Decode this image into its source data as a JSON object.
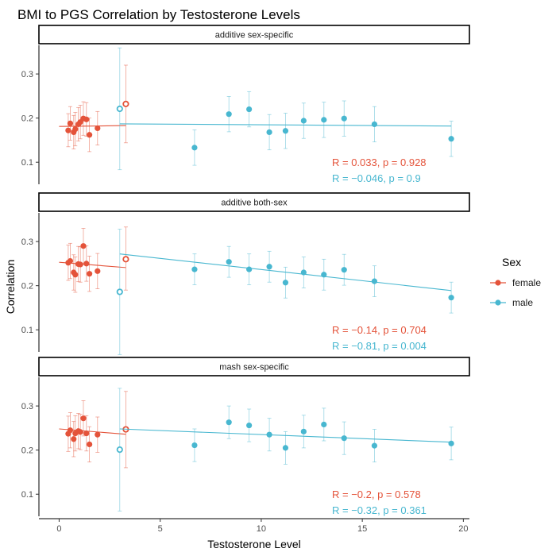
{
  "chart_data": {
    "type": "scatter",
    "title": "BMI to PGS Correlation by Testosterone Levels",
    "xlabel": "Testosterone Level",
    "ylabel": "Correlation",
    "xlim": [
      -1,
      20.3
    ],
    "ylim": [
      0.05,
      0.365
    ],
    "x_ticks": [
      0,
      5,
      10,
      15,
      20
    ],
    "y_ticks": [
      0.1,
      0.2,
      0.3
    ],
    "grid": false,
    "legend": {
      "title": "Sex",
      "position": "right",
      "entries": [
        {
          "label": "female",
          "color": "#E4533A"
        },
        {
          "label": "male",
          "color": "#48B7D0"
        }
      ]
    },
    "panels": [
      {
        "strip": "additive sex-specific",
        "female": {
          "points": [
            {
              "x": 0.45,
              "y": 0.172,
              "lo": 0.135,
              "hi": 0.21
            },
            {
              "x": 0.55,
              "y": 0.188,
              "lo": 0.15,
              "hi": 0.226
            },
            {
              "x": 0.72,
              "y": 0.168,
              "lo": 0.13,
              "hi": 0.206
            },
            {
              "x": 0.8,
              "y": 0.175,
              "lo": 0.137,
              "hi": 0.213
            },
            {
              "x": 0.95,
              "y": 0.186,
              "lo": 0.148,
              "hi": 0.224
            },
            {
              "x": 1.05,
              "y": 0.191,
              "lo": 0.153,
              "hi": 0.229
            },
            {
              "x": 1.2,
              "y": 0.199,
              "lo": 0.161,
              "hi": 0.237
            },
            {
              "x": 1.35,
              "y": 0.197,
              "lo": 0.159,
              "hi": 0.235
            },
            {
              "x": 1.5,
              "y": 0.162,
              "lo": 0.124,
              "hi": 0.2
            },
            {
              "x": 1.9,
              "y": 0.177,
              "lo": 0.139,
              "hi": 0.215
            },
            {
              "x": 3.3,
              "y": 0.232,
              "lo": 0.144,
              "hi": 0.32,
              "hollow": true
            }
          ],
          "fit": {
            "x": [
              0,
              3.3
            ],
            "y": [
              0.181,
              0.183
            ]
          },
          "stat": "R = 0.033, p = 0.928"
        },
        "male": {
          "points": [
            {
              "x": 3.0,
              "y": 0.221,
              "lo": 0.083,
              "hi": 0.359,
              "hollow": true
            },
            {
              "x": 6.7,
              "y": 0.133,
              "lo": 0.093,
              "hi": 0.173
            },
            {
              "x": 8.4,
              "y": 0.209,
              "lo": 0.169,
              "hi": 0.249
            },
            {
              "x": 9.4,
              "y": 0.22,
              "lo": 0.18,
              "hi": 0.26
            },
            {
              "x": 10.4,
              "y": 0.168,
              "lo": 0.128,
              "hi": 0.208
            },
            {
              "x": 11.2,
              "y": 0.171,
              "lo": 0.131,
              "hi": 0.211
            },
            {
              "x": 12.1,
              "y": 0.194,
              "lo": 0.154,
              "hi": 0.234
            },
            {
              "x": 13.1,
              "y": 0.196,
              "lo": 0.156,
              "hi": 0.236
            },
            {
              "x": 14.1,
              "y": 0.199,
              "lo": 0.159,
              "hi": 0.239
            },
            {
              "x": 15.6,
              "y": 0.186,
              "lo": 0.146,
              "hi": 0.226
            },
            {
              "x": 19.4,
              "y": 0.153,
              "lo": 0.113,
              "hi": 0.193
            }
          ],
          "fit": {
            "x": [
              3.0,
              19.4
            ],
            "y": [
              0.187,
              0.182
            ]
          },
          "stat": "R = −0.046, p = 0.9"
        }
      },
      {
        "strip": "additive both-sex",
        "female": {
          "points": [
            {
              "x": 0.45,
              "y": 0.252,
              "lo": 0.212,
              "hi": 0.292
            },
            {
              "x": 0.55,
              "y": 0.256,
              "lo": 0.216,
              "hi": 0.296
            },
            {
              "x": 0.72,
              "y": 0.23,
              "lo": 0.19,
              "hi": 0.27
            },
            {
              "x": 0.8,
              "y": 0.225,
              "lo": 0.185,
              "hi": 0.265
            },
            {
              "x": 0.95,
              "y": 0.249,
              "lo": 0.209,
              "hi": 0.289
            },
            {
              "x": 1.05,
              "y": 0.248,
              "lo": 0.208,
              "hi": 0.288
            },
            {
              "x": 1.2,
              "y": 0.29,
              "lo": 0.25,
              "hi": 0.33
            },
            {
              "x": 1.35,
              "y": 0.25,
              "lo": 0.21,
              "hi": 0.29
            },
            {
              "x": 1.5,
              "y": 0.227,
              "lo": 0.187,
              "hi": 0.267
            },
            {
              "x": 1.9,
              "y": 0.233,
              "lo": 0.193,
              "hi": 0.273
            },
            {
              "x": 3.3,
              "y": 0.26,
              "lo": 0.19,
              "hi": 0.333,
              "hollow": true
            }
          ],
          "fit": {
            "x": [
              0,
              3.3
            ],
            "y": [
              0.253,
              0.241
            ]
          },
          "stat": "R = −0.14, p = 0.704"
        },
        "male": {
          "points": [
            {
              "x": 3.0,
              "y": 0.186,
              "lo": 0.044,
              "hi": 0.328,
              "hollow": true
            },
            {
              "x": 6.7,
              "y": 0.237,
              "lo": 0.202,
              "hi": 0.272
            },
            {
              "x": 8.4,
              "y": 0.254,
              "lo": 0.219,
              "hi": 0.289
            },
            {
              "x": 9.4,
              "y": 0.237,
              "lo": 0.202,
              "hi": 0.272
            },
            {
              "x": 10.4,
              "y": 0.243,
              "lo": 0.208,
              "hi": 0.278
            },
            {
              "x": 11.2,
              "y": 0.207,
              "lo": 0.172,
              "hi": 0.242
            },
            {
              "x": 12.1,
              "y": 0.23,
              "lo": 0.195,
              "hi": 0.265
            },
            {
              "x": 13.1,
              "y": 0.225,
              "lo": 0.19,
              "hi": 0.26
            },
            {
              "x": 14.1,
              "y": 0.236,
              "lo": 0.201,
              "hi": 0.271
            },
            {
              "x": 15.6,
              "y": 0.21,
              "lo": 0.175,
              "hi": 0.245
            },
            {
              "x": 19.4,
              "y": 0.173,
              "lo": 0.138,
              "hi": 0.208
            }
          ],
          "fit": {
            "x": [
              3.0,
              19.4
            ],
            "y": [
              0.272,
              0.189
            ]
          },
          "stat": "R = −0.81, p = 0.004"
        }
      },
      {
        "strip": "mash sex-specific",
        "female": {
          "points": [
            {
              "x": 0.45,
              "y": 0.237,
              "lo": 0.197,
              "hi": 0.277
            },
            {
              "x": 0.55,
              "y": 0.245,
              "lo": 0.205,
              "hi": 0.285
            },
            {
              "x": 0.72,
              "y": 0.225,
              "lo": 0.185,
              "hi": 0.265
            },
            {
              "x": 0.8,
              "y": 0.238,
              "lo": 0.198,
              "hi": 0.278
            },
            {
              "x": 0.95,
              "y": 0.243,
              "lo": 0.203,
              "hi": 0.283
            },
            {
              "x": 1.05,
              "y": 0.241,
              "lo": 0.201,
              "hi": 0.281
            },
            {
              "x": 1.2,
              "y": 0.272,
              "lo": 0.232,
              "hi": 0.312
            },
            {
              "x": 1.35,
              "y": 0.238,
              "lo": 0.198,
              "hi": 0.278
            },
            {
              "x": 1.5,
              "y": 0.213,
              "lo": 0.173,
              "hi": 0.253
            },
            {
              "x": 1.9,
              "y": 0.235,
              "lo": 0.195,
              "hi": 0.275
            },
            {
              "x": 3.3,
              "y": 0.247,
              "lo": 0.16,
              "hi": 0.333,
              "hollow": true
            }
          ],
          "fit": {
            "x": [
              0,
              3.3
            ],
            "y": [
              0.248,
              0.236
            ]
          },
          "stat": "R = −0.2, p = 0.578"
        },
        "male": {
          "points": [
            {
              "x": 3.0,
              "y": 0.201,
              "lo": 0.062,
              "hi": 0.34,
              "hollow": true
            },
            {
              "x": 6.7,
              "y": 0.211,
              "lo": 0.174,
              "hi": 0.248
            },
            {
              "x": 8.4,
              "y": 0.263,
              "lo": 0.226,
              "hi": 0.3
            },
            {
              "x": 9.4,
              "y": 0.256,
              "lo": 0.219,
              "hi": 0.293
            },
            {
              "x": 10.4,
              "y": 0.235,
              "lo": 0.198,
              "hi": 0.272
            },
            {
              "x": 11.2,
              "y": 0.205,
              "lo": 0.168,
              "hi": 0.242
            },
            {
              "x": 12.1,
              "y": 0.242,
              "lo": 0.205,
              "hi": 0.279
            },
            {
              "x": 13.1,
              "y": 0.258,
              "lo": 0.221,
              "hi": 0.295
            },
            {
              "x": 14.1,
              "y": 0.227,
              "lo": 0.19,
              "hi": 0.264
            },
            {
              "x": 15.6,
              "y": 0.21,
              "lo": 0.173,
              "hi": 0.247
            },
            {
              "x": 19.4,
              "y": 0.215,
              "lo": 0.178,
              "hi": 0.252
            }
          ],
          "fit": {
            "x": [
              3.0,
              19.4
            ],
            "y": [
              0.248,
              0.218
            ]
          },
          "stat": "R = −0.32, p = 0.361"
        }
      }
    ]
  }
}
